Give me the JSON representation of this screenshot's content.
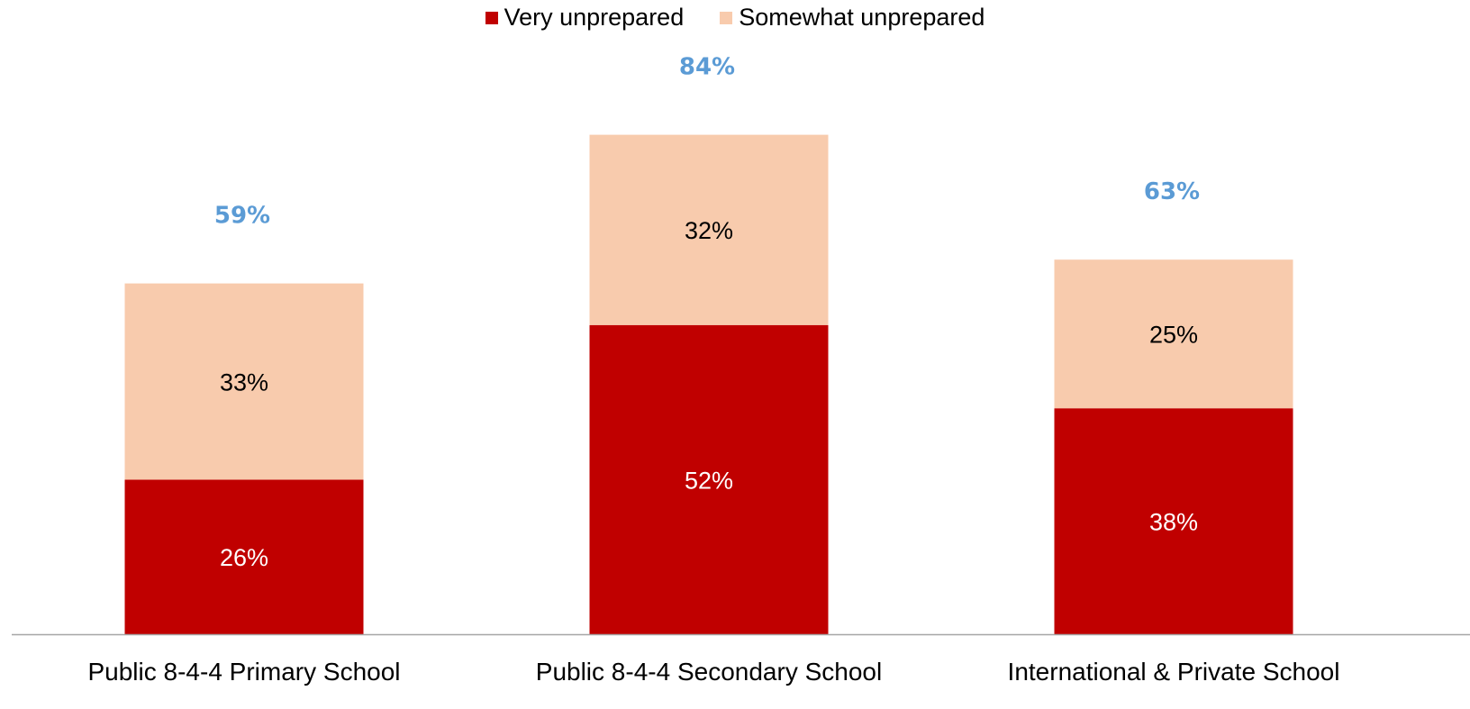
{
  "chart_data": {
    "type": "bar",
    "stacked": true,
    "categories": [
      "Public 8-4-4 Primary School",
      "Public 8-4-4 Secondary School",
      "International & Private School"
    ],
    "series": [
      {
        "name": "Very unprepared",
        "values": [
          26,
          52,
          38
        ],
        "labels": [
          "26%",
          "52%",
          "38%"
        ],
        "color": "#C00000",
        "label_color": "#FFFFFF"
      },
      {
        "name": "Somewhat unprepared",
        "values": [
          33,
          32,
          25
        ],
        "labels": [
          "33%",
          "32%",
          "25%"
        ],
        "color": "#F8CBAD",
        "label_color": "#000000"
      }
    ],
    "totals": [
      59,
      84,
      63
    ],
    "total_labels": [
      "59%",
      "84%",
      "63%"
    ],
    "total_color": "#5B9BD5",
    "legend_position": "top",
    "grid": false,
    "ylim": [
      0,
      100
    ]
  }
}
